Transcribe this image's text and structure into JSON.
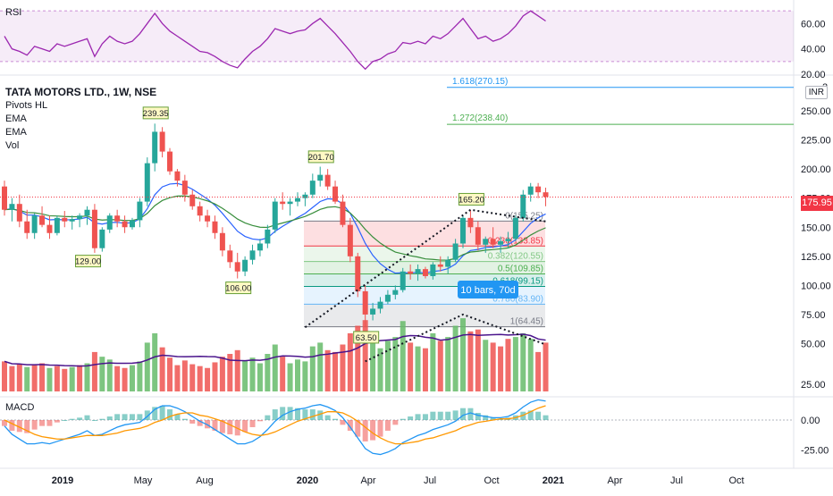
{
  "chart_data": {
    "type": "candlestick",
    "symbol": "TATA MOTORS LTD., 1W, NSE",
    "indicators": [
      "Pivots HL",
      "EMA",
      "EMA",
      "Vol"
    ],
    "currency_label": "INR",
    "current_price": "175.95",
    "price_axis_ticks": [
      "250.00",
      "225.00",
      "200.00",
      "175.00",
      "150.00",
      "125.00",
      "100.00",
      "75.00",
      "50.00",
      "25.00"
    ],
    "price_axis_top_label": "2",
    "x_axis_ticks": [
      "2019",
      "May",
      "Aug",
      "2020",
      "Apr",
      "Jul",
      "Oct",
      "2021",
      "Apr",
      "Jul",
      "Oct"
    ],
    "pivot_labels": [
      {
        "text": "239.35",
        "value": 239.35
      },
      {
        "text": "129.00",
        "value": 129.0
      },
      {
        "text": "106.00",
        "value": 106.0
      },
      {
        "text": "201.70",
        "value": 201.7
      },
      {
        "text": "63.50",
        "value": 63.5
      },
      {
        "text": "165.20",
        "value": 165.2
      }
    ],
    "fib_retracement": [
      {
        "ratio": "0",
        "level": 155.25,
        "label": "0(155.25)",
        "color": "#787b86"
      },
      {
        "ratio": "0.236",
        "level": 133.85,
        "label": "0.236(133.85)",
        "color": "#f23645"
      },
      {
        "ratio": "0.382",
        "level": 120.55,
        "label": "0.382(120.55)",
        "color": "#81c784"
      },
      {
        "ratio": "0.5",
        "level": 109.85,
        "label": "0.5(109.85)",
        "color": "#4caf50"
      },
      {
        "ratio": "0.618",
        "level": 99.15,
        "label": "0.618(99.15)",
        "color": "#089981"
      },
      {
        "ratio": "0.786",
        "level": 83.9,
        "label": "0.786(83.90)",
        "color": "#64b5f6"
      },
      {
        "ratio": "1",
        "level": 64.45,
        "label": "1(64.45)",
        "color": "#787b86"
      }
    ],
    "fib_extensions": [
      {
        "level": 270.15,
        "label": "1.618(270.15)",
        "color": "#2196f3"
      },
      {
        "level": 238.4,
        "label": "1.272(238.40)",
        "color": "#4caf50"
      }
    ],
    "measure_label": "10 bars, 70d",
    "rsi": {
      "label": "RSI",
      "ticks": [
        "60.00",
        "40.00",
        "20.00"
      ],
      "band": [
        30,
        70
      ],
      "line_color": "#9c27b0"
    },
    "macd": {
      "label": "MACD",
      "ticks": [
        "0.00",
        "-25.00"
      ]
    },
    "candles_ohlc": [
      [
        185,
        190,
        160,
        165
      ],
      [
        165,
        175,
        155,
        170
      ],
      [
        170,
        178,
        150,
        155
      ],
      [
        155,
        165,
        140,
        145
      ],
      [
        145,
        162,
        140,
        160
      ],
      [
        160,
        168,
        150,
        152
      ],
      [
        152,
        160,
        140,
        145
      ],
      [
        145,
        160,
        143,
        158
      ],
      [
        158,
        164,
        150,
        155
      ],
      [
        155,
        160,
        148,
        157
      ],
      [
        157,
        162,
        150,
        160
      ],
      [
        160,
        168,
        152,
        165
      ],
      [
        165,
        170,
        128,
        132
      ],
      [
        132,
        150,
        129,
        148
      ],
      [
        148,
        162,
        145,
        160
      ],
      [
        160,
        165,
        150,
        155
      ],
      [
        155,
        160,
        145,
        150
      ],
      [
        150,
        158,
        148,
        156
      ],
      [
        156,
        175,
        150,
        172
      ],
      [
        172,
        210,
        168,
        205
      ],
      [
        205,
        239,
        198,
        232
      ],
      [
        232,
        236,
        210,
        215
      ],
      [
        215,
        218,
        195,
        198
      ],
      [
        198,
        200,
        185,
        190
      ],
      [
        190,
        195,
        172,
        178
      ],
      [
        178,
        182,
        165,
        168
      ],
      [
        168,
        172,
        155,
        160
      ],
      [
        160,
        165,
        150,
        155
      ],
      [
        155,
        160,
        140,
        145
      ],
      [
        145,
        150,
        125,
        130
      ],
      [
        130,
        135,
        115,
        120
      ],
      [
        120,
        128,
        106,
        112
      ],
      [
        112,
        125,
        108,
        122
      ],
      [
        122,
        135,
        118,
        130
      ],
      [
        130,
        140,
        125,
        136
      ],
      [
        136,
        152,
        132,
        148
      ],
      [
        148,
        175,
        145,
        172
      ],
      [
        172,
        180,
        165,
        170
      ],
      [
        170,
        175,
        160,
        172
      ],
      [
        172,
        180,
        168,
        175
      ],
      [
        175,
        180,
        168,
        178
      ],
      [
        178,
        196,
        175,
        190
      ],
      [
        190,
        202,
        185,
        195
      ],
      [
        195,
        200,
        182,
        185
      ],
      [
        185,
        190,
        170,
        172
      ],
      [
        172,
        178,
        150,
        152
      ],
      [
        152,
        158,
        120,
        125
      ],
      [
        125,
        128,
        90,
        95
      ],
      [
        95,
        100,
        64,
        75
      ],
      [
        75,
        85,
        70,
        80
      ],
      [
        80,
        90,
        76,
        86
      ],
      [
        86,
        96,
        84,
        92
      ],
      [
        92,
        100,
        88,
        96
      ],
      [
        96,
        115,
        94,
        112
      ],
      [
        112,
        118,
        105,
        110
      ],
      [
        110,
        118,
        104,
        114
      ],
      [
        114,
        116,
        106,
        108
      ],
      [
        108,
        120,
        105,
        118
      ],
      [
        118,
        125,
        112,
        116
      ],
      [
        116,
        125,
        110,
        122
      ],
      [
        122,
        140,
        120,
        136
      ],
      [
        136,
        160,
        132,
        158
      ],
      [
        158,
        165,
        145,
        150
      ],
      [
        150,
        155,
        130,
        135
      ],
      [
        135,
        142,
        128,
        140
      ],
      [
        140,
        150,
        132,
        135
      ],
      [
        135,
        142,
        128,
        138
      ],
      [
        138,
        146,
        132,
        140
      ],
      [
        140,
        160,
        138,
        158
      ],
      [
        158,
        182,
        155,
        178
      ],
      [
        178,
        188,
        172,
        185
      ],
      [
        185,
        188,
        175,
        180
      ],
      [
        180,
        184,
        168,
        176
      ]
    ],
    "volumes": [
      [
        32,
        "d"
      ],
      [
        27,
        "d"
      ],
      [
        29,
        "d"
      ],
      [
        26,
        "u"
      ],
      [
        28,
        "d"
      ],
      [
        30,
        "d"
      ],
      [
        25,
        "u"
      ],
      [
        27,
        "d"
      ],
      [
        24,
        "d"
      ],
      [
        26,
        "u"
      ],
      [
        28,
        "d"
      ],
      [
        30,
        "u"
      ],
      [
        42,
        "d"
      ],
      [
        37,
        "u"
      ],
      [
        34,
        "u"
      ],
      [
        27,
        "d"
      ],
      [
        25,
        "d"
      ],
      [
        28,
        "u"
      ],
      [
        32,
        "u"
      ],
      [
        52,
        "u"
      ],
      [
        62,
        "u"
      ],
      [
        47,
        "d"
      ],
      [
        36,
        "d"
      ],
      [
        28,
        "d"
      ],
      [
        33,
        "d"
      ],
      [
        29,
        "d"
      ],
      [
        27,
        "d"
      ],
      [
        25,
        "d"
      ],
      [
        31,
        "d"
      ],
      [
        37,
        "d"
      ],
      [
        40,
        "d"
      ],
      [
        44,
        "d"
      ],
      [
        33,
        "u"
      ],
      [
        36,
        "u"
      ],
      [
        30,
        "u"
      ],
      [
        40,
        "u"
      ],
      [
        50,
        "u"
      ],
      [
        37,
        "d"
      ],
      [
        30,
        "u"
      ],
      [
        34,
        "u"
      ],
      [
        32,
        "u"
      ],
      [
        48,
        "u"
      ],
      [
        52,
        "u"
      ],
      [
        44,
        "d"
      ],
      [
        42,
        "d"
      ],
      [
        50,
        "d"
      ],
      [
        62,
        "d"
      ],
      [
        70,
        "d"
      ],
      [
        76,
        "d"
      ],
      [
        52,
        "u"
      ],
      [
        46,
        "u"
      ],
      [
        54,
        "u"
      ],
      [
        58,
        "u"
      ],
      [
        75,
        "u"
      ],
      [
        52,
        "d"
      ],
      [
        48,
        "u"
      ],
      [
        46,
        "d"
      ],
      [
        62,
        "u"
      ],
      [
        54,
        "d"
      ],
      [
        58,
        "u"
      ],
      [
        70,
        "u"
      ],
      [
        78,
        "u"
      ],
      [
        64,
        "d"
      ],
      [
        66,
        "d"
      ],
      [
        55,
        "u"
      ],
      [
        52,
        "d"
      ],
      [
        48,
        "d"
      ],
      [
        56,
        "d"
      ],
      [
        58,
        "u"
      ],
      [
        62,
        "u"
      ],
      [
        56,
        "u"
      ],
      [
        42,
        "d"
      ],
      [
        52,
        "d"
      ]
    ],
    "rsi_values": [
      50,
      40,
      38,
      35,
      42,
      40,
      38,
      44,
      42,
      44,
      46,
      48,
      34,
      44,
      50,
      46,
      44,
      46,
      52,
      60,
      68,
      60,
      54,
      50,
      46,
      42,
      38,
      37,
      34,
      30,
      27,
      25,
      32,
      38,
      42,
      48,
      56,
      54,
      52,
      54,
      55,
      60,
      64,
      58,
      52,
      45,
      38,
      30,
      24,
      30,
      32,
      36,
      38,
      45,
      44,
      46,
      44,
      50,
      48,
      52,
      58,
      64,
      56,
      48,
      50,
      46,
      48,
      52,
      58,
      66,
      70,
      66,
      62
    ],
    "macd_line": [
      -5,
      -12,
      -16,
      -20,
      -20,
      -19,
      -20,
      -18,
      -16,
      -14,
      -12,
      -9,
      -13,
      -12,
      -9,
      -6,
      -4,
      -3,
      -2,
      3,
      9,
      12,
      12,
      10,
      7,
      3,
      -1,
      -4,
      -8,
      -12,
      -16,
      -20,
      -20,
      -18,
      -14,
      -8,
      -1,
      4,
      7,
      9,
      10,
      12,
      13,
      11,
      8,
      2,
      -6,
      -15,
      -24,
      -28,
      -29,
      -27,
      -24,
      -19,
      -16,
      -13,
      -11,
      -8,
      -6,
      -4,
      -1,
      4,
      6,
      4,
      3,
      2,
      2,
      3,
      6,
      11,
      15,
      17,
      16
    ],
    "macd_signal": [
      0,
      -3,
      -6,
      -9,
      -12,
      -14,
      -15,
      -16,
      -16,
      -15,
      -14,
      -13,
      -13,
      -13,
      -12,
      -11,
      -9,
      -8,
      -7,
      -5,
      -2,
      0,
      3,
      5,
      6,
      6,
      4,
      3,
      1,
      -1,
      -4,
      -7,
      -10,
      -12,
      -13,
      -12,
      -10,
      -7,
      -4,
      -1,
      1,
      3,
      5,
      7,
      7,
      6,
      3,
      -1,
      -6,
      -11,
      -15,
      -18,
      -20,
      -20,
      -19,
      -18,
      -16,
      -15,
      -13,
      -11,
      -9,
      -6,
      -4,
      -2,
      -1,
      0,
      1,
      1,
      2,
      4,
      7,
      10,
      12
    ]
  }
}
